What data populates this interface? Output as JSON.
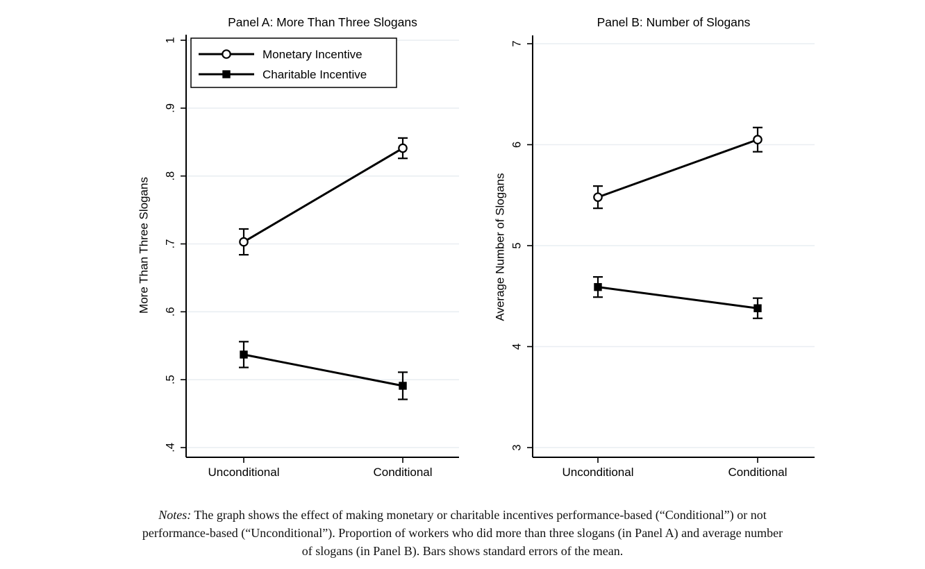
{
  "colors": {
    "foreground": "#000000",
    "grid": "#e9eef2",
    "background": "#ffffff"
  },
  "chart_data": [
    {
      "type": "line",
      "panel": "A",
      "title": "Panel A: More Than Three Slogans",
      "xlabel": "",
      "ylabel": "More Than Three Slogans",
      "categories": [
        "Unconditional",
        "Conditional"
      ],
      "ylim": [
        0.4,
        1
      ],
      "yticks": {
        "values": [
          1,
          0.9,
          0.8,
          0.7,
          0.6,
          0.5,
          0.4
        ],
        "labels": [
          "1",
          ".9",
          ".8",
          ".7",
          ".6",
          ".5",
          ".4"
        ]
      },
      "grid": true,
      "legend": {
        "show": true,
        "position": "top-left"
      },
      "series": [
        {
          "name": "Monetary Incentive",
          "marker": "open-circle",
          "values": [
            0.703,
            0.841
          ],
          "errors": [
            0.019,
            0.015
          ]
        },
        {
          "name": "Charitable Incentive",
          "marker": "filled-square",
          "values": [
            0.537,
            0.491
          ],
          "errors": [
            0.019,
            0.02
          ]
        }
      ]
    },
    {
      "type": "line",
      "panel": "B",
      "title": "Panel B: Number of Slogans",
      "xlabel": "",
      "ylabel": "Average Number of Slogans",
      "categories": [
        "Unconditional",
        "Conditional"
      ],
      "ylim": [
        3,
        7
      ],
      "yticks": {
        "values": [
          7,
          6,
          5,
          4,
          3
        ],
        "labels": [
          "7",
          "6",
          "5",
          "4",
          "3"
        ]
      },
      "grid": true,
      "legend": {
        "show": false,
        "position": null
      },
      "series": [
        {
          "name": "Monetary Incentive",
          "marker": "open-circle",
          "values": [
            5.48,
            6.05
          ],
          "errors": [
            0.11,
            0.12
          ]
        },
        {
          "name": "Charitable Incentive",
          "marker": "filled-square",
          "values": [
            4.59,
            4.38
          ],
          "errors": [
            0.1,
            0.1
          ]
        }
      ]
    }
  ],
  "notes": {
    "label": "Notes:",
    "line1_rest": " The graph shows the effect of making monetary or charitable incentives performance-based (“Conditional”) or not",
    "line2": "performance-based (“Unconditional”). Proportion of workers who did more than three slogans (in Panel A) and average number",
    "line3": "of slogans (in Panel B). Bars shows standard errors of the mean."
  }
}
